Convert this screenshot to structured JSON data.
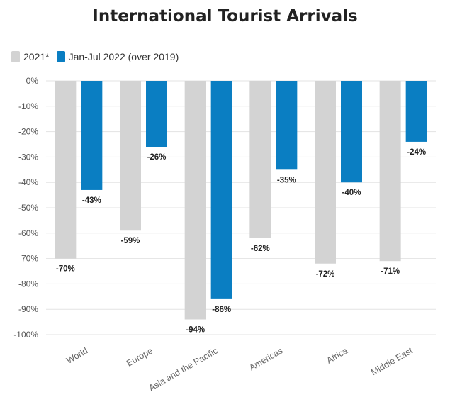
{
  "chart_data": {
    "type": "bar",
    "title": "International Tourist Arrivals",
    "xlabel": "",
    "ylabel": "",
    "categories": [
      "World",
      "Europe",
      "Asia and the Pacific",
      "Americas",
      "Africa",
      "Middle East"
    ],
    "series": [
      {
        "name": "2021*",
        "color": "#d3d3d3",
        "values": [
          -70,
          -59,
          -94,
          -62,
          -72,
          -71
        ]
      },
      {
        "name": "Jan-Jul 2022 (over 2019)",
        "color": "#0a7ec2",
        "values": [
          -43,
          -26,
          -86,
          -35,
          -40,
          -24
        ]
      }
    ],
    "value_suffix": "%",
    "ylim": [
      -100,
      0
    ],
    "yticks": [
      0,
      -10,
      -20,
      -30,
      -40,
      -50,
      -60,
      -70,
      -80,
      -90,
      -100
    ],
    "grid": true,
    "legend": "top-left"
  }
}
